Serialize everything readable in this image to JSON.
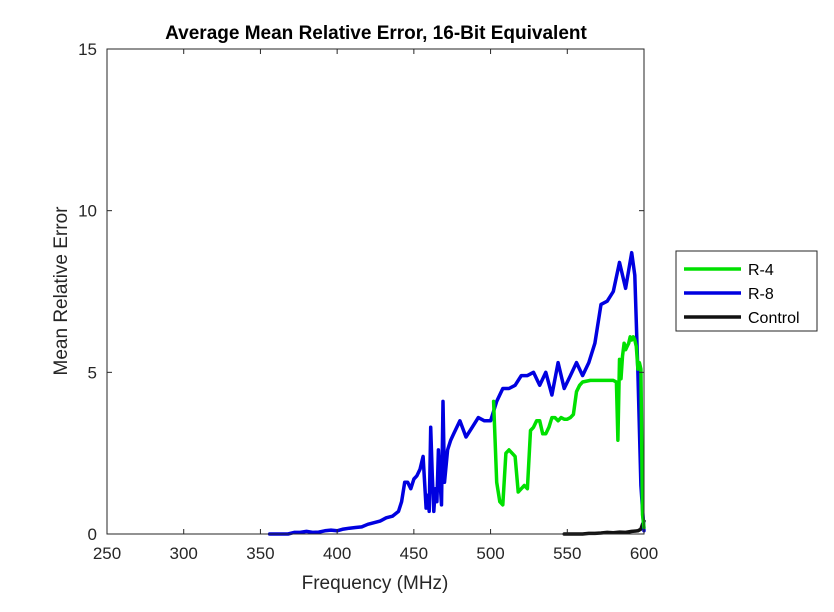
{
  "chart_data": {
    "type": "line",
    "title": "Average Mean Relative Error, 16-Bit Equivalent",
    "xlabel": "Frequency (MHz)",
    "ylabel": "Mean Relative Error",
    "xlim": [
      250,
      600
    ],
    "ylim": [
      0,
      15
    ],
    "xticks": [
      250,
      300,
      350,
      400,
      450,
      500,
      550,
      600
    ],
    "yticks": [
      0,
      5,
      10,
      15
    ],
    "grid": false,
    "legend_position": "outside-right",
    "series": [
      {
        "name": "R-4",
        "color": "#00e000",
        "x": [
          502,
          504,
          506,
          508,
          510,
          512,
          514,
          516,
          518,
          520,
          522,
          524,
          526,
          528,
          530,
          532,
          534,
          536,
          538,
          540,
          542,
          544,
          546,
          548,
          550,
          552,
          554,
          556,
          558,
          560,
          565,
          570,
          575,
          580,
          582,
          583,
          584,
          585,
          586,
          587,
          588,
          589,
          590,
          591,
          592,
          593,
          594,
          595,
          596,
          597,
          598,
          599,
          600
        ],
        "y": [
          4.1,
          1.6,
          1.0,
          0.9,
          2.5,
          2.6,
          2.5,
          2.4,
          1.3,
          1.4,
          1.5,
          1.4,
          3.2,
          3.3,
          3.5,
          3.5,
          3.1,
          3.1,
          3.3,
          3.6,
          3.6,
          3.5,
          3.6,
          3.55,
          3.55,
          3.6,
          3.7,
          4.4,
          4.6,
          4.7,
          4.75,
          4.75,
          4.75,
          4.75,
          4.7,
          2.9,
          5.4,
          4.8,
          5.5,
          5.9,
          5.7,
          5.8,
          5.9,
          6.1,
          6.0,
          6.1,
          6.0,
          5.8,
          5.1,
          5.3,
          5.1,
          0.6,
          0.2
        ]
      },
      {
        "name": "R-8",
        "color": "#0000e0",
        "x": [
          356,
          362,
          368,
          372,
          376,
          380,
          384,
          388,
          392,
          396,
          400,
          404,
          408,
          412,
          416,
          420,
          424,
          428,
          432,
          436,
          440,
          442,
          444,
          446,
          448,
          450,
          452,
          454,
          456,
          458,
          459,
          460,
          461,
          462,
          463,
          464,
          465,
          466,
          467,
          468,
          469,
          470,
          472,
          474,
          476,
          480,
          484,
          488,
          492,
          496,
          500,
          504,
          508,
          512,
          516,
          520,
          524,
          528,
          532,
          536,
          540,
          544,
          548,
          552,
          556,
          560,
          564,
          568,
          572,
          576,
          580,
          584,
          588,
          592,
          594,
          596,
          598,
          600
        ],
        "y": [
          0,
          0,
          0,
          0.05,
          0.05,
          0.08,
          0.05,
          0.06,
          0.1,
          0.12,
          0.1,
          0.15,
          0.18,
          0.2,
          0.22,
          0.3,
          0.35,
          0.4,
          0.5,
          0.55,
          0.7,
          1.0,
          1.6,
          1.6,
          1.4,
          1.7,
          1.8,
          2.0,
          2.4,
          0.8,
          1.2,
          0.7,
          3.3,
          1.8,
          0.7,
          1.4,
          1.0,
          2.6,
          1.7,
          0.9,
          4.1,
          1.6,
          2.6,
          2.9,
          3.1,
          3.5,
          3.0,
          3.3,
          3.6,
          3.5,
          3.5,
          4.1,
          4.5,
          4.5,
          4.6,
          4.9,
          4.9,
          5.0,
          4.6,
          5.0,
          4.3,
          5.3,
          4.5,
          4.9,
          5.3,
          4.9,
          5.3,
          5.9,
          7.1,
          7.2,
          7.5,
          8.4,
          7.6,
          8.7,
          8.0,
          5.0,
          1.5,
          0.1
        ]
      },
      {
        "name": "Control",
        "color": "#111111",
        "x": [
          548,
          552,
          556,
          560,
          564,
          568,
          572,
          576,
          580,
          584,
          588,
          592,
          596,
          598,
          599,
          600
        ],
        "y": [
          0,
          0,
          0,
          0,
          0.02,
          0.02,
          0.03,
          0.05,
          0.04,
          0.06,
          0.05,
          0.08,
          0.1,
          0.15,
          0.3,
          0.4
        ]
      }
    ]
  }
}
